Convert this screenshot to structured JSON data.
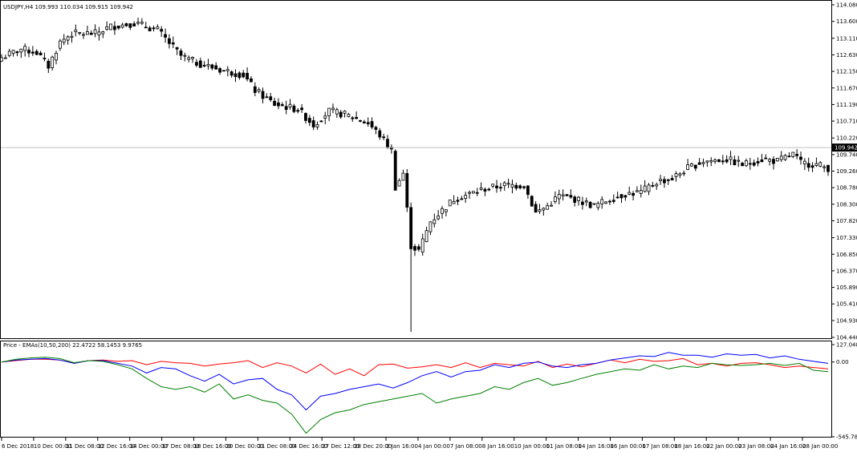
{
  "colors": {
    "background": "#ffffff",
    "foreground": "#000000",
    "grid_line": "#c0c0c0",
    "ema_fast": "#ff0000",
    "ema_mid": "#0000ff",
    "ema_slow": "#008000",
    "price_line_label_bg": "#000000",
    "price_line_label_fg": "#ffffff"
  },
  "chart_data": [
    {
      "type": "candlestick",
      "title": "USDJPY,H4  109.993 110.034 109.915 109.942",
      "symbol": "USDJPY",
      "timeframe": "H4",
      "last_ohlc": {
        "open": 109.993,
        "high": 110.034,
        "low": 109.915,
        "close": 109.942
      },
      "current_price_label": "109.942",
      "ylim": [
        104.44,
        114.08
      ],
      "y_ticks": [
        "114.080",
        "113.600",
        "113.110",
        "112.630",
        "112.150",
        "111.670",
        "111.190",
        "110.710",
        "110.220",
        "109.740",
        "109.260",
        "108.780",
        "108.300",
        "107.820",
        "107.330",
        "106.850",
        "106.370",
        "105.890",
        "105.410",
        "104.930",
        "104.440"
      ],
      "x_ticks": [
        "6 Dec 2018",
        "10 Dec 00:00",
        "11 Dec 08:00",
        "12 Dec 16:00",
        "14 Dec 00:00",
        "17 Dec 08:00",
        "18 Dec 16:00",
        "20 Dec 00:00",
        "21 Dec 08:00",
        "24 Dec 16:00",
        "27 Dec 12:00",
        "28 Dec 20:00",
        "2 Jan 16:00",
        "4 Jan 00:00",
        "7 Jan 08:00",
        "8 Jan 16:00",
        "10 Jan 00:00",
        "11 Jan 08:00",
        "14 Jan 16:00",
        "16 Jan 00:00",
        "17 Jan 08:00",
        "18 Jan 16:00",
        "22 Jan 00:00",
        "23 Jan 08:00",
        "24 Jan 16:00",
        "28 Jan 00:00"
      ],
      "close_anchors": [
        [
          0,
          112.55
        ],
        [
          5,
          112.8
        ],
        [
          9,
          112.7
        ],
        [
          12,
          112.3
        ],
        [
          15,
          113.0
        ],
        [
          18,
          113.25
        ],
        [
          24,
          113.25
        ],
        [
          28,
          113.45
        ],
        [
          34,
          113.55
        ],
        [
          40,
          113.35
        ],
        [
          42,
          113.1
        ],
        [
          46,
          112.6
        ],
        [
          50,
          112.4
        ],
        [
          56,
          112.2
        ],
        [
          62,
          112.05
        ],
        [
          65,
          111.6
        ],
        [
          70,
          111.2
        ],
        [
          76,
          111.05
        ],
        [
          80,
          110.6
        ],
        [
          84,
          111.0
        ],
        [
          88,
          110.9
        ],
        [
          94,
          110.65
        ],
        [
          97,
          110.3
        ],
        [
          100,
          109.85
        ],
        [
          101,
          108.8
        ],
        [
          103,
          109.2
        ],
        [
          105,
          107.1
        ],
        [
          107,
          106.95
        ],
        [
          110,
          107.8
        ],
        [
          116,
          108.45
        ],
        [
          120,
          108.6
        ],
        [
          124,
          108.75
        ],
        [
          129,
          108.85
        ],
        [
          134,
          108.85
        ],
        [
          137,
          108.05
        ],
        [
          140,
          108.25
        ],
        [
          143,
          108.55
        ],
        [
          147,
          108.45
        ],
        [
          152,
          108.25
        ],
        [
          156,
          108.45
        ],
        [
          160,
          108.6
        ],
        [
          164,
          108.65
        ],
        [
          168,
          108.95
        ],
        [
          172,
          109.05
        ],
        [
          176,
          109.35
        ],
        [
          180,
          109.55
        ],
        [
          186,
          109.6
        ],
        [
          190,
          109.45
        ],
        [
          195,
          109.6
        ],
        [
          199,
          109.55
        ],
        [
          203,
          109.75
        ],
        [
          205,
          109.5
        ],
        [
          209,
          109.45
        ],
        [
          212,
          109.35
        ]
      ],
      "anomaly": {
        "index": 105,
        "low": 104.6
      }
    },
    {
      "type": "line",
      "title": "Price - EMAs(10,50,200)  22.4722 58.1453 9.9765",
      "indicator": "Price - EMAs",
      "params": "10,50,200",
      "values_text": "22.4722 58.1453 9.9765",
      "ylim": [
        -545.7839,
        127.0485
      ],
      "y_ticks": [
        "127.0485",
        "0.00",
        "-545.7839"
      ],
      "series": [
        {
          "name": "EMA10",
          "color": "#ff0000",
          "values": [
            0,
            10,
            20,
            20,
            15,
            -10,
            10,
            15,
            5,
            10,
            -20,
            5,
            -5,
            -10,
            -30,
            -15,
            -5,
            10,
            -40,
            -5,
            -30,
            -80,
            -15,
            -90,
            -50,
            -100,
            -20,
            -15,
            -45,
            -35,
            -20,
            -40,
            -5,
            -40,
            -10,
            -20,
            -30,
            5,
            -40,
            -15,
            -35,
            -10,
            15,
            -5,
            20,
            5,
            10,
            25,
            -20,
            -10,
            -30,
            -10,
            -5,
            -20,
            -40,
            -30,
            -40,
            -50
          ]
        },
        {
          "name": "EMA50",
          "color": "#0000ff",
          "values": [
            0,
            15,
            20,
            25,
            15,
            -10,
            10,
            10,
            -10,
            -30,
            -80,
            -40,
            -50,
            -100,
            -140,
            -90,
            -160,
            -130,
            -120,
            -200,
            -240,
            -350,
            -250,
            -230,
            -200,
            -180,
            -160,
            -190,
            -150,
            -100,
            -70,
            -110,
            -70,
            -60,
            -20,
            -40,
            -10,
            0,
            -30,
            -40,
            -20,
            -10,
            15,
            30,
            45,
            40,
            70,
            50,
            50,
            35,
            60,
            50,
            55,
            30,
            45,
            20,
            5,
            -10
          ]
        },
        {
          "name": "EMA200",
          "color": "#008000",
          "values": [
            0,
            20,
            30,
            35,
            25,
            -5,
            10,
            5,
            -20,
            -50,
            -120,
            -180,
            -200,
            -180,
            -220,
            -160,
            -270,
            -240,
            -280,
            -300,
            -380,
            -520,
            -420,
            -370,
            -350,
            -310,
            -290,
            -270,
            -250,
            -230,
            -300,
            -270,
            -250,
            -230,
            -180,
            -200,
            -150,
            -120,
            -170,
            -150,
            -120,
            -90,
            -70,
            -50,
            -60,
            -20,
            -50,
            -30,
            -40,
            -10,
            -20,
            -25,
            -20,
            -10,
            -25,
            -10,
            -60,
            -70
          ]
        }
      ]
    }
  ]
}
